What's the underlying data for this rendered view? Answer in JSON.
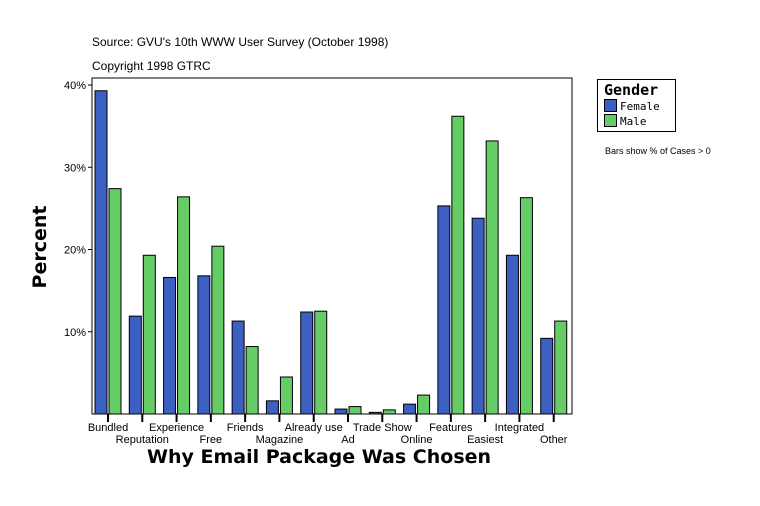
{
  "source": "Source: GVU's 10th WWW User Survey (October 1998)",
  "copyright": "Copyright 1998 GTRC",
  "note": "Bars show % of Cases > 0",
  "colors": {
    "Female": "#3c5fc2",
    "Male": "#66cc66"
  },
  "chart_data": {
    "type": "bar",
    "xlabel": "Why Email Package Was Chosen",
    "ylabel": "Percent",
    "ylim": [
      0,
      40
    ],
    "yticks": [
      "10%",
      "20%",
      "30%",
      "40%"
    ],
    "legend_title": "Gender",
    "legend_position": "right",
    "categories": [
      "Bundled",
      "Reputation",
      "Experience",
      "Free",
      "Friends",
      "Magazine",
      "Already use",
      "Ad",
      "Trade Show",
      "Online",
      "Features",
      "Easiest",
      "Integrated",
      "Other"
    ],
    "series": [
      {
        "name": "Female",
        "values": [
          39.3,
          11.9,
          16.6,
          16.8,
          11.3,
          1.6,
          12.4,
          0.6,
          0.2,
          1.2,
          25.3,
          23.8,
          19.3,
          9.2
        ]
      },
      {
        "name": "Male",
        "values": [
          27.4,
          19.3,
          26.4,
          20.4,
          8.2,
          4.5,
          12.5,
          0.9,
          0.5,
          2.3,
          36.2,
          33.2,
          26.3,
          11.3
        ]
      }
    ]
  }
}
